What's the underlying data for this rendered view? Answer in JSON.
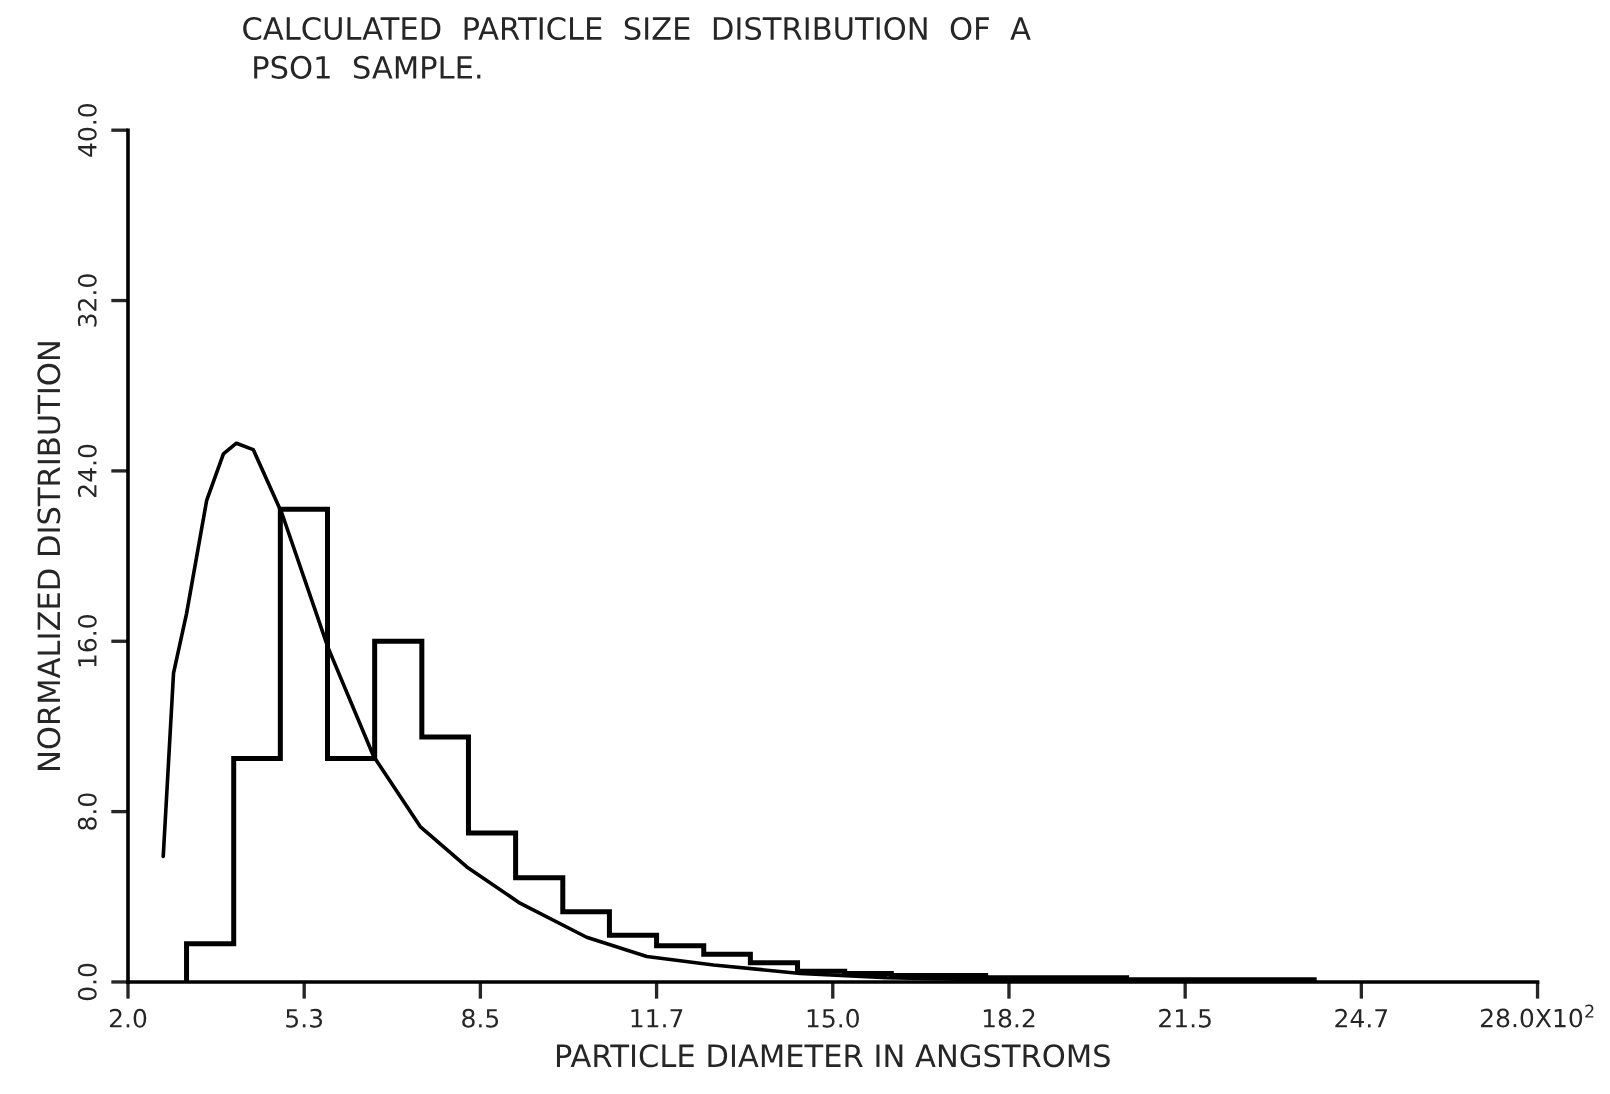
{
  "chart_data": {
    "type": "histogram",
    "title": "CALCULATED  PARTICLE  SIZE  DISTRIBUTION  OF  A\n PSO1  SAMPLE.",
    "xlabel": "PARTICLE DIAMETER IN ANGSTROMS",
    "ylabel": "NORMALIZED DISTRIBUTION",
    "color": "#000000",
    "bins": [
      3.08,
      3.95,
      4.81,
      5.68,
      6.55,
      7.42,
      8.28,
      9.15,
      10.02,
      10.88,
      11.75,
      12.62,
      13.48,
      14.35,
      15.22,
      16.08,
      16.95,
      17.82,
      18.68,
      19.55,
      20.42,
      21.28,
      22.15,
      23.02,
      23.88
    ],
    "values": [
      1.8,
      10.5,
      22.2,
      10.5,
      16.0,
      11.5,
      7.0,
      4.9,
      3.3,
      2.2,
      1.7,
      1.3,
      0.9,
      0.5,
      0.4,
      0.3,
      0.3,
      0.2,
      0.2,
      0.2,
      0.1,
      0.1,
      0.1,
      0.1
    ],
    "series": [
      {
        "type": "line",
        "color": "#000000",
        "x": [
          2.65,
          2.84,
          3.08,
          3.45,
          3.76,
          4.0,
          4.31,
          4.84,
          5.69,
          6.53,
          7.39,
          8.25,
          9.23,
          10.46,
          11.57,
          12.8,
          14.4,
          16.0,
          18.0,
          22.0
        ],
        "values": [
          5.9,
          14.5,
          17.3,
          22.6,
          24.8,
          25.3,
          25.0,
          22.0,
          15.7,
          10.6,
          7.3,
          5.4,
          3.7,
          2.1,
          1.2,
          0.8,
          0.4,
          0.2,
          0.1,
          0.0
        ]
      }
    ],
    "xlim": [
      2.0,
      28.0
    ],
    "xticks": [
      {
        "value": 2.0,
        "label": "2.0"
      },
      {
        "value": 5.25,
        "label": "5.3"
      },
      {
        "value": 8.5,
        "label": "8.5"
      },
      {
        "value": 11.75,
        "label": "11.7"
      },
      {
        "value": 15.0,
        "label": "15.0"
      },
      {
        "value": 18.25,
        "label": "18.2"
      },
      {
        "value": 21.5,
        "label": "21.5"
      },
      {
        "value": 24.75,
        "label": "24.7"
      },
      {
        "value": 28.0,
        "label": "28.0X10$^{2}$"
      }
    ],
    "ylim": [
      0.0,
      40.0
    ],
    "yticks": [
      {
        "value": 0,
        "label": "0.0"
      },
      {
        "value": 8,
        "label": "8.0"
      },
      {
        "value": 16,
        "label": "16.0"
      },
      {
        "value": 24,
        "label": "24.0"
      },
      {
        "value": 32,
        "label": "32.0"
      },
      {
        "value": 40,
        "label": "40.0"
      }
    ],
    "grid": false,
    "legend": false
  }
}
